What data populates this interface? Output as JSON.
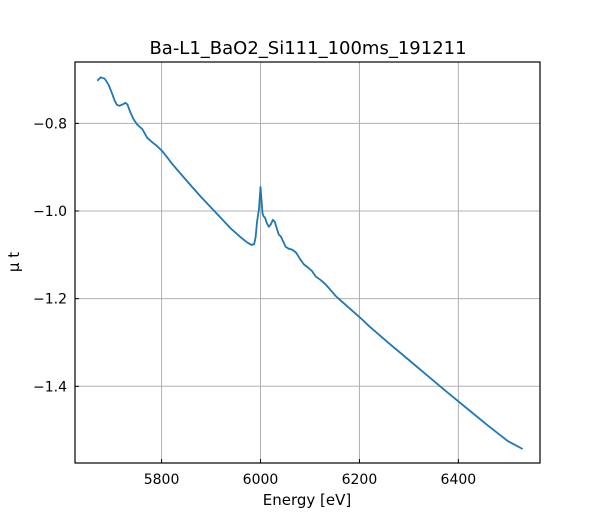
{
  "chart_data": {
    "type": "line",
    "title": "Ba-L1_BaO2_Si111_100ms_191211",
    "xlabel": "Energy [eV]",
    "ylabel": "μ t",
    "xlim": [
      5625,
      6565
    ],
    "ylim": [
      -1.575,
      -0.66
    ],
    "xticks": [
      5800,
      6000,
      6200,
      6400
    ],
    "xtick_labels": [
      "5800",
      "6000",
      "6200",
      "6400"
    ],
    "yticks": [
      -0.8,
      -1.0,
      -1.2,
      -1.4
    ],
    "ytick_labels": [
      "−0.8",
      "−1.0",
      "−1.2",
      "−1.4"
    ],
    "grid": true,
    "line_color": "#1f77b4",
    "series": [
      {
        "x": [
          5670,
          5677,
          5685,
          5693,
          5700,
          5705,
          5710,
          5715,
          5721,
          5727,
          5731,
          5737,
          5743,
          5751,
          5761,
          5771,
          5781,
          5791,
          5801,
          5811,
          5821,
          5840,
          5860,
          5880,
          5900,
          5920,
          5940,
          5960,
          5972,
          5981,
          5987,
          5990,
          5993,
          5997,
          6000,
          6002,
          6004,
          6006,
          6009,
          6013,
          6017,
          6021,
          6025,
          6029,
          6033,
          6037,
          6041,
          6046,
          6051,
          6057,
          6064,
          6072,
          6080,
          6088,
          6096,
          6104,
          6112,
          6122,
          6132,
          6142,
          6152,
          6162,
          6172,
          6182,
          6192,
          6202,
          6220,
          6260,
          6300,
          6340,
          6380,
          6420,
          6460,
          6500,
          6530
        ],
        "y": [
          -0.703,
          -0.695,
          -0.698,
          -0.712,
          -0.732,
          -0.748,
          -0.758,
          -0.76,
          -0.757,
          -0.753,
          -0.757,
          -0.775,
          -0.79,
          -0.803,
          -0.813,
          -0.833,
          -0.843,
          -0.852,
          -0.863,
          -0.877,
          -0.892,
          -0.917,
          -0.943,
          -0.968,
          -0.992,
          -1.016,
          -1.04,
          -1.06,
          -1.071,
          -1.077,
          -1.076,
          -1.06,
          -1.025,
          -0.995,
          -0.945,
          -0.975,
          -1.005,
          -1.012,
          -1.015,
          -1.028,
          -1.036,
          -1.03,
          -1.02,
          -1.025,
          -1.04,
          -1.054,
          -1.058,
          -1.07,
          -1.082,
          -1.086,
          -1.088,
          -1.095,
          -1.11,
          -1.122,
          -1.129,
          -1.137,
          -1.15,
          -1.158,
          -1.168,
          -1.181,
          -1.194,
          -1.204,
          -1.214,
          -1.224,
          -1.234,
          -1.244,
          -1.263,
          -1.302,
          -1.34,
          -1.378,
          -1.416,
          -1.453,
          -1.49,
          -1.525,
          -1.543
        ]
      }
    ]
  }
}
